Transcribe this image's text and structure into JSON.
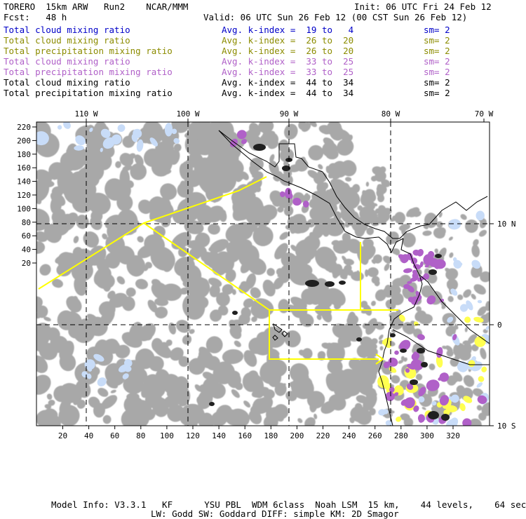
{
  "header": {
    "model": "TORERO  15km ARW   Run2    NCAR/MMM",
    "init": "Init: 06 UTC Fri 24 Feb 12",
    "fcst": "Fcst:   48 h",
    "valid": "Valid: 06 UTC Sun 26 Feb 12 (00 CST Sun 26 Feb 12)"
  },
  "legend": [
    {
      "field": "Total cloud mixing ratio",
      "index": "Avg. k-index =  19 to   4",
      "sm": "sm= 2",
      "color": "#0000c8"
    },
    {
      "field": "Total cloud mixing ratio",
      "index": "Avg. k-index =  26 to  20",
      "sm": "sm= 2",
      "color": "#8c8c00"
    },
    {
      "field": "Total precipitation mixing ratio",
      "index": "Avg. k-index =  26 to  20",
      "sm": "sm= 2",
      "color": "#8c8c00"
    },
    {
      "field": "Total cloud mixing ratio",
      "index": "Avg. k-index =  33 to  25",
      "sm": "sm= 2",
      "color": "#b060c8"
    },
    {
      "field": "Total precipitation mixing ratio",
      "index": "Avg. k-index =  33 to  25",
      "sm": "sm= 2",
      "color": "#b060c8"
    },
    {
      "field": "Total cloud mixing ratio",
      "index": "Avg. k-index =  44 to  34",
      "sm": "sm= 2",
      "color": "#000000"
    },
    {
      "field": "Total precipitation mixing ratio",
      "index": "Avg. k-index =  44 to  34",
      "sm": "sm= 2",
      "color": "#000000"
    }
  ],
  "map": {
    "lon_labels": [
      "110 W",
      "100 W",
      "90 W",
      "80 W",
      "70 W"
    ],
    "lat_labels": [
      "10 N",
      "0",
      "10 S"
    ],
    "y_ticks": [
      "220",
      "200",
      "180",
      "160",
      "140",
      "120",
      "100",
      "80",
      "60",
      "40",
      "20"
    ],
    "x_ticks": [
      "20",
      "40",
      "60",
      "80",
      "100",
      "120",
      "140",
      "160",
      "180",
      "200",
      "220",
      "240",
      "260",
      "280",
      "300",
      "320"
    ],
    "colors": {
      "cloud_gray": "#a8a8a8",
      "light_blue": "#c8dcf8",
      "yellow": "#ffff50",
      "purple": "#b060c8",
      "flight_track": "#ffff00"
    }
  },
  "footer": {
    "line1": "Model Info: V3.3.1   KF      YSU PBL  WDM 6class  Noah LSM  15 km,    44 levels,    64 sec",
    "line2": "LW: Godd SW: Goddard DIFF: simple KM: 2D Smagor"
  }
}
